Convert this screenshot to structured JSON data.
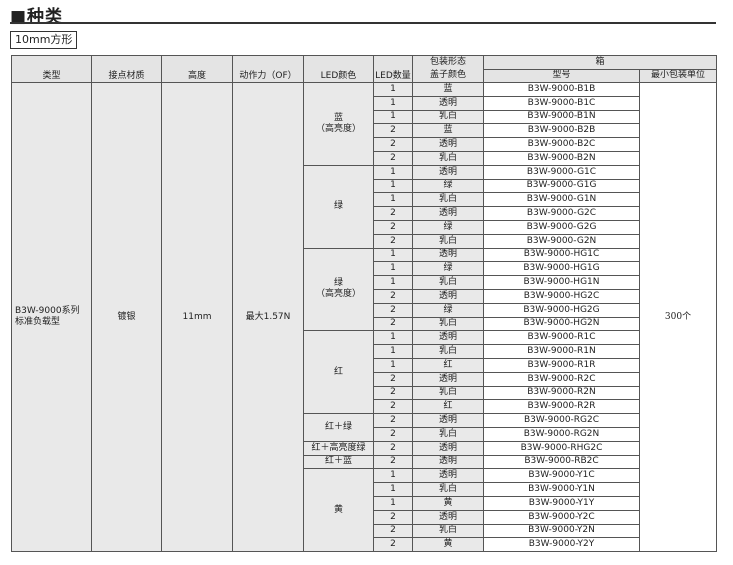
{
  "title": "■种类",
  "subtitle": "10mm方形",
  "header": {
    "type": "类型",
    "contact": "接点材质",
    "height": "高度",
    "force": "动作力（OF）",
    "led_color": "LED颜色",
    "led_count": "LED数量",
    "package": "包装形态",
    "cap_color": "盖子颜色",
    "box": "箱",
    "model": "型号",
    "min_unit": "最小包装单位"
  },
  "common": {
    "type": "B3W-9000系列\n标准负载型",
    "contact": "镀银",
    "height": "11mm",
    "force": "最大1.57N",
    "min_unit": "300个"
  },
  "groups": [
    {
      "color": "蓝\n（高亮度）",
      "rows": [
        [
          "1",
          "蓝",
          "B3W-9000-B1B"
        ],
        [
          "1",
          "透明",
          "B3W-9000-B1C"
        ],
        [
          "1",
          "乳白",
          "B3W-9000-B1N"
        ],
        [
          "2",
          "蓝",
          "B3W-9000-B2B"
        ],
        [
          "2",
          "透明",
          "B3W-9000-B2C"
        ],
        [
          "2",
          "乳白",
          "B3W-9000-B2N"
        ]
      ]
    },
    {
      "color": "绿",
      "rows": [
        [
          "1",
          "透明",
          "B3W-9000-G1C"
        ],
        [
          "1",
          "绿",
          "B3W-9000-G1G"
        ],
        [
          "1",
          "乳白",
          "B3W-9000-G1N"
        ],
        [
          "2",
          "透明",
          "B3W-9000-G2C"
        ],
        [
          "2",
          "绿",
          "B3W-9000-G2G"
        ],
        [
          "2",
          "乳白",
          "B3W-9000-G2N"
        ]
      ]
    },
    {
      "color": "绿\n（高亮度）",
      "rows": [
        [
          "1",
          "透明",
          "B3W-9000-HG1C"
        ],
        [
          "1",
          "绿",
          "B3W-9000-HG1G"
        ],
        [
          "1",
          "乳白",
          "B3W-9000-HG1N"
        ],
        [
          "2",
          "透明",
          "B3W-9000-HG2C"
        ],
        [
          "2",
          "绿",
          "B3W-9000-HG2G"
        ],
        [
          "2",
          "乳白",
          "B3W-9000-HG2N"
        ]
      ]
    },
    {
      "color": "红",
      "rows": [
        [
          "1",
          "透明",
          "B3W-9000-R1C"
        ],
        [
          "1",
          "乳白",
          "B3W-9000-R1N"
        ],
        [
          "1",
          "红",
          "B3W-9000-R1R"
        ],
        [
          "2",
          "透明",
          "B3W-9000-R2C"
        ],
        [
          "2",
          "乳白",
          "B3W-9000-R2N"
        ],
        [
          "2",
          "红",
          "B3W-9000-R2R"
        ]
      ]
    },
    {
      "color": "红＋绿",
      "rows": [
        [
          "2",
          "透明",
          "B3W-9000-RG2C"
        ],
        [
          "2",
          "乳白",
          "B3W-9000-RG2N"
        ]
      ]
    },
    {
      "color": "红＋高亮度绿",
      "rows": [
        [
          "2",
          "透明",
          "B3W-9000-RHG2C"
        ]
      ]
    },
    {
      "color": "红＋蓝",
      "rows": [
        [
          "2",
          "透明",
          "B3W-9000-RB2C"
        ]
      ]
    },
    {
      "color": "黄",
      "rows": [
        [
          "1",
          "透明",
          "B3W-9000-Y1C"
        ],
        [
          "1",
          "乳白",
          "B3W-9000-Y1N"
        ],
        [
          "1",
          "黄",
          "B3W-9000-Y1Y"
        ],
        [
          "2",
          "透明",
          "B3W-9000-Y2C"
        ],
        [
          "2",
          "乳白",
          "B3W-9000-Y2N"
        ],
        [
          "2",
          "黄",
          "B3W-9000-Y2Y"
        ]
      ]
    }
  ]
}
